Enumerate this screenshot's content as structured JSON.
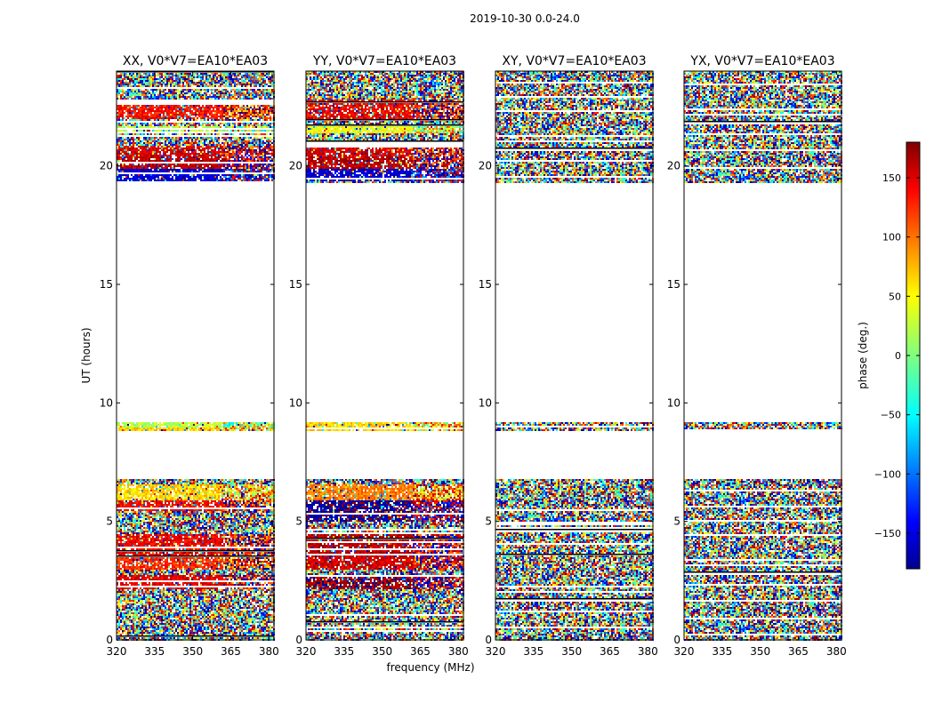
{
  "chart_data": {
    "type": "heatmap",
    "suptitle": "2019-10-30 0.0-24.0",
    "xlabel": "frequency (MHz)",
    "ylabel": "UT (hours)",
    "xlim": [
      320,
      382
    ],
    "ylim": [
      0,
      24
    ],
    "xticks": [
      320,
      335,
      350,
      365,
      380
    ],
    "xtick_labels": [
      "320",
      "335",
      "350",
      "365",
      "380"
    ],
    "yticks": [
      0,
      5,
      10,
      15,
      20
    ],
    "ytick_labels": [
      "0",
      "5",
      "10",
      "15",
      "20"
    ],
    "colorbar": {
      "label": "phase (deg.)",
      "range": [
        -180,
        180
      ],
      "ticks": [
        150,
        100,
        50,
        0,
        -50,
        -100,
        -150
      ],
      "tick_labels": [
        "150",
        "100",
        "50",
        "0",
        "−50",
        "−100",
        "−150"
      ],
      "colormap": "jet"
    },
    "data_time_ranges_hours": [
      [
        0.0,
        6.8
      ],
      [
        8.8,
        9.2
      ],
      [
        19.3,
        24.0
      ]
    ],
    "panels": [
      {
        "title": "XX, V0*V7=EA10*EA03",
        "pol": "XX",
        "coherent": true,
        "bands": [
          {
            "t": [
              19.4,
              19.9
            ],
            "phase": -150
          },
          {
            "t": [
              19.9,
              20.4
            ],
            "phase": 160
          },
          {
            "t": [
              20.4,
              20.9
            ],
            "phase": 150
          },
          {
            "t": [
              21.4,
              21.7
            ],
            "phase": 20
          },
          {
            "t": [
              22.0,
              22.8
            ],
            "phase": 130
          },
          {
            "t": [
              2.2,
              2.8
            ],
            "phase": 145
          },
          {
            "t": [
              3.0,
              3.5
            ],
            "phase": 120
          },
          {
            "t": [
              3.5,
              4.5
            ],
            "phase": 140
          },
          {
            "t": [
              5.5,
              5.9
            ],
            "phase": 135
          },
          {
            "t": [
              5.9,
              6.6
            ],
            "phase": 60
          },
          {
            "t": [
              8.8,
              9.0
            ],
            "phase": 60
          },
          {
            "t": [
              9.0,
              9.2
            ],
            "phase": 20
          }
        ]
      },
      {
        "title": "YY, V0*V7=EA10*EA03",
        "pol": "YY",
        "coherent": true,
        "bands": [
          {
            "t": [
              19.4,
              19.9
            ],
            "phase": -150
          },
          {
            "t": [
              19.9,
              20.4
            ],
            "phase": 160
          },
          {
            "t": [
              20.4,
              20.9
            ],
            "phase": 150
          },
          {
            "t": [
              21.4,
              21.7
            ],
            "phase": 40
          },
          {
            "t": [
              22.0,
              22.8
            ],
            "phase": 140
          },
          {
            "t": [
              2.2,
              2.8
            ],
            "phase": 170
          },
          {
            "t": [
              3.0,
              3.5
            ],
            "phase": 150
          },
          {
            "t": [
              3.5,
              4.5
            ],
            "phase": 160
          },
          {
            "t": [
              5.0,
              5.9
            ],
            "phase": -170
          },
          {
            "t": [
              5.9,
              6.6
            ],
            "phase": 90
          },
          {
            "t": [
              8.8,
              9.2
            ],
            "phase": 60
          }
        ]
      },
      {
        "title": "XY, V0*V7=EA10*EA03",
        "pol": "XY",
        "coherent": false,
        "bands": []
      },
      {
        "title": "YX, V0*V7=EA10*EA03",
        "pol": "YX",
        "coherent": false,
        "bands": []
      }
    ]
  }
}
